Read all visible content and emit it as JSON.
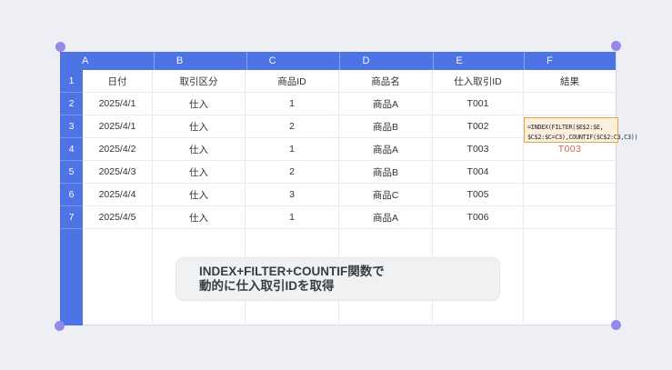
{
  "theme": {
    "accent_blue": "#4d73e5",
    "handle_purple": "#9489ea",
    "canvas_bg": "#edeff4",
    "grid_line": "#e9ebef",
    "table_border": "#d8dbe2",
    "formula_bg": "#fcefdb",
    "formula_border": "#e4a54c",
    "result_orange": "#d2685a",
    "caption_bg": "#eff1f3",
    "text_dark": "#2e3338"
  },
  "spreadsheet": {
    "column_letters": [
      "A",
      "B",
      "C",
      "D",
      "E",
      "F"
    ],
    "row_numbers": [
      "1",
      "2",
      "3",
      "4",
      "5",
      "6",
      "7"
    ],
    "header_row": [
      "日付",
      "取引区分",
      "商品ID",
      "商品名",
      "仕入取引ID",
      "結果"
    ],
    "data_rows": [
      [
        "2025/4/1",
        "仕入",
        "1",
        "商品A",
        "T001",
        ""
      ],
      [
        "2025/4/1",
        "仕入",
        "2",
        "商品B",
        "T002",
        ""
      ],
      [
        "2025/4/2",
        "仕入",
        "1",
        "商品A",
        "T003",
        ""
      ],
      [
        "2025/4/3",
        "仕入",
        "2",
        "商品B",
        "T004",
        ""
      ],
      [
        "2025/4/4",
        "仕入",
        "3",
        "商品C",
        "T005",
        ""
      ],
      [
        "2025/4/5",
        "仕入",
        "1",
        "商品A",
        "T006",
        ""
      ]
    ],
    "formula_cell": {
      "row": 1,
      "col": 5,
      "display": "=INDEX(FILTER($E$2:$E,\n$C$2:$C=C3),COUNTIF($C$2:C3,C3))"
    },
    "result_cell": {
      "row": 2,
      "col": 5,
      "value": "T003"
    }
  },
  "caption": {
    "line1": "INDEX+FILTER+COUNTIF関数で",
    "line2": "動的に仕入取引IDを取得"
  }
}
